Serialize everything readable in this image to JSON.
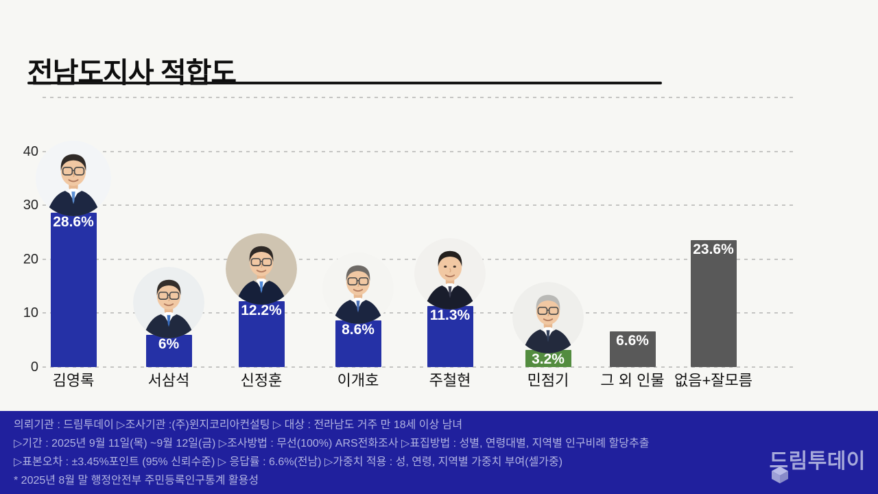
{
  "page": {
    "title": "전남도지사 적합도"
  },
  "chart_data": {
    "type": "bar",
    "title": "전남도지사 적합도",
    "categories": [
      "김영록",
      "서삼석",
      "신정훈",
      "이개호",
      "주철현",
      "민점기",
      "그 외 인물",
      "없음+잘모름"
    ],
    "values": [
      28.6,
      6,
      12.2,
      8.6,
      11.3,
      3.2,
      6.6,
      23.6
    ],
    "value_labels": [
      "28.6%",
      "6%",
      "12.2%",
      "8.6%",
      "11.3%",
      "3.2%",
      "6.6%",
      "23.6%"
    ],
    "unit": "%",
    "yticks": [
      0,
      10,
      20,
      30,
      40
    ],
    "ylim": [
      0,
      50
    ],
    "grid": true,
    "legend": "none",
    "bar_colors": [
      "#2531a6",
      "#2531a6",
      "#2531a6",
      "#2531a6",
      "#2531a6",
      "#538c3f",
      "#595959",
      "#595959"
    ],
    "has_photo": [
      true,
      true,
      true,
      true,
      true,
      true,
      false,
      false
    ],
    "avatars": [
      {
        "bg": "#f3f5f7",
        "hair": "#2f2a27",
        "glasses": true,
        "tie": "#5b8fd4",
        "suit": "#1d2742"
      },
      {
        "bg": "#eceff0",
        "hair": "#332e2b",
        "glasses": true,
        "tie": "#3a6fc2",
        "suit": "#20293f"
      },
      {
        "bg": "#cfc4b1",
        "hair": "#2e2926",
        "glasses": true,
        "tie": "#4d87d8",
        "suit": "#16203a"
      },
      {
        "bg": "#f5f5f2",
        "hair": "#6e6a66",
        "glasses": true,
        "tie": "#4a6fb5",
        "suit": "#1b2540"
      },
      {
        "bg": "#f2f1ee",
        "hair": "#24201e",
        "glasses": false,
        "tie": "#3c3f52",
        "suit": "#191d2c"
      },
      {
        "bg": "#efefec",
        "hair": "#b9b9b6",
        "glasses": true,
        "tie": "#32405c",
        "suit": "#232a3d"
      }
    ]
  },
  "footer": {
    "lines": [
      "의뢰기관 : 드림투데이  ▷조사기관 :(주)윈지코리아컨설팅  ▷ 대상 :  전라남도 거주 만 18세 이상 남녀",
      "▷기간 : 2025년 9월 11일(목) ~9월 12일(금) ▷조사방법 : 무선(100%) ARS전화조사 ▷표집방법 : 성별, 연령대별, 지역별  인구비례 할당추출",
      "▷표본오차 : ±3.45%포인트 (95% 신뢰수준)  ▷ 응답률 : 6.6%(전남) ▷가중치 적용 : 성, 연령, 지역별 가중치 부여(셀가중)",
      "* 2025년 8월 말 행정안전부 주민등록인구통계 활용성"
    ],
    "logo_text": "드림투데이"
  },
  "colors": {
    "page_bg": "#f7f7f4",
    "bar_blue": "#2531a6",
    "bar_green": "#538c3f",
    "bar_gray": "#595959",
    "footer_bg": "#20209d",
    "footer_text": "#b2b4e2",
    "logo_text": "#a6a9da",
    "gridline": "#c4c4c2",
    "title_text": "#0e0e0e"
  },
  "icons": {
    "logo_cube_icon": "3d-cube"
  }
}
